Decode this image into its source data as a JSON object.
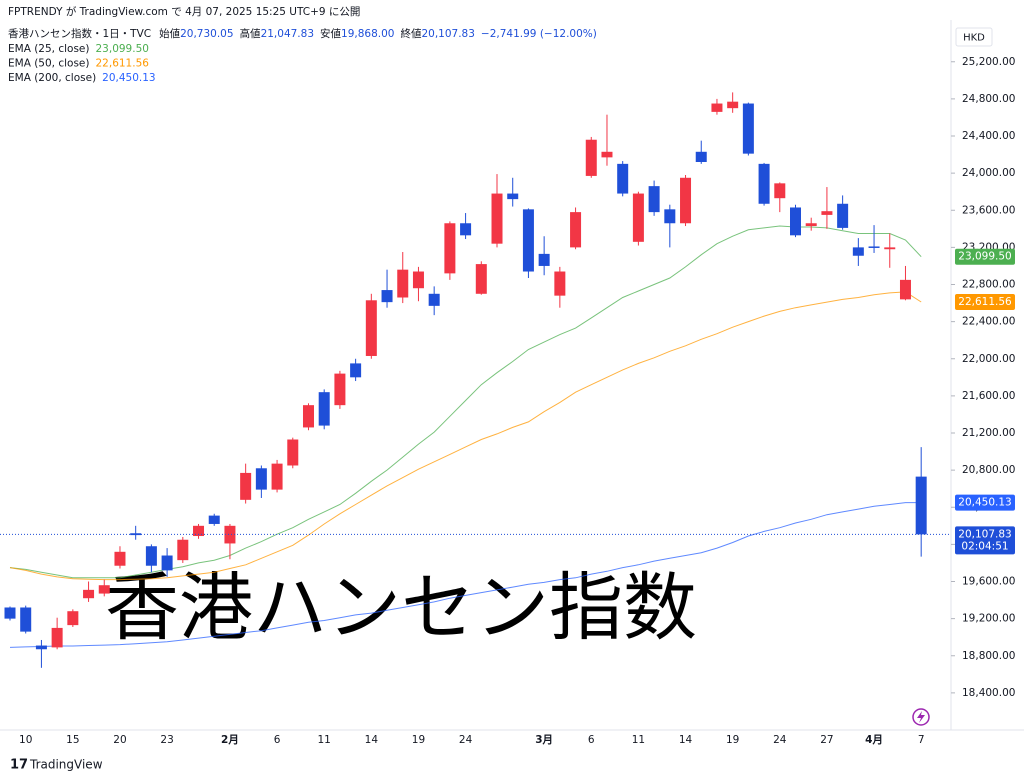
{
  "chart_data": {
    "type": "candlestick",
    "published": "FPTRENDY が TradingView.com で 4月 07, 2025 15:25 UTC+9 に公開",
    "symbol": "香港ハンセン指数・1日・TVC",
    "ohlc_text": [
      [
        "始値",
        "20,730.05"
      ],
      [
        "高値",
        "21,047.83"
      ],
      [
        "安値",
        "19,868.00"
      ],
      [
        "終値",
        "20,107.83"
      ]
    ],
    "change_text": "−2,741.99 (−12.00%)",
    "currency": "HKD",
    "overlay_title": "香港ハンセン指数",
    "brand": "TradingView",
    "up_color": "#f23645",
    "down_color": "#1f4fd8",
    "categories": [
      null,
      "10",
      null,
      null,
      "15",
      null,
      null,
      "20",
      null,
      null,
      "23",
      null,
      null,
      null,
      "2月",
      null,
      null,
      "6",
      null,
      null,
      "11",
      null,
      null,
      "14",
      null,
      null,
      "19",
      null,
      null,
      "24",
      null,
      null,
      null,
      null,
      "3月",
      null,
      null,
      "6",
      null,
      null,
      "11",
      null,
      null,
      "14",
      null,
      null,
      "19",
      null,
      null,
      "24",
      null,
      null,
      "27",
      null,
      null,
      "4月",
      null,
      null,
      "7"
    ],
    "ohlc": [
      [
        19320,
        19330,
        19180,
        19200
      ],
      [
        19320,
        19340,
        19040,
        19060
      ],
      [
        18910,
        18970,
        18670,
        18870
      ],
      [
        18890,
        19210,
        18870,
        19100
      ],
      [
        19130,
        19300,
        19110,
        19280
      ],
      [
        19420,
        19600,
        19380,
        19510
      ],
      [
        19470,
        19620,
        19440,
        19560
      ],
      [
        19770,
        19980,
        19740,
        19920
      ],
      [
        20120,
        20200,
        20050,
        20100
      ],
      [
        19980,
        20000,
        19700,
        19770
      ],
      [
        19880,
        19960,
        19650,
        19720
      ],
      [
        19830,
        20080,
        19800,
        20050
      ],
      [
        20090,
        20220,
        20060,
        20200
      ],
      [
        20310,
        20330,
        20200,
        20220
      ],
      [
        20010,
        20220,
        19840,
        20200
      ],
      [
        20480,
        20870,
        20440,
        20770
      ],
      [
        20820,
        20850,
        20500,
        20590
      ],
      [
        20590,
        20910,
        20560,
        20870
      ],
      [
        20850,
        21150,
        20820,
        21130
      ],
      [
        21260,
        21520,
        21230,
        21500
      ],
      [
        21640,
        21670,
        21240,
        21280
      ],
      [
        21500,
        21870,
        21460,
        21840
      ],
      [
        21950,
        22000,
        21760,
        21800
      ],
      [
        22030,
        22700,
        22000,
        22630
      ],
      [
        22740,
        22960,
        22550,
        22610
      ],
      [
        22660,
        23150,
        22600,
        22960
      ],
      [
        22760,
        22990,
        22620,
        22940
      ],
      [
        22700,
        22780,
        22470,
        22570
      ],
      [
        22920,
        23480,
        22850,
        23460
      ],
      [
        23460,
        23570,
        23290,
        23330
      ],
      [
        22700,
        23050,
        22690,
        23020
      ],
      [
        23240,
        23990,
        23200,
        23780
      ],
      [
        23780,
        23950,
        23640,
        23720
      ],
      [
        23610,
        23620,
        22870,
        22940
      ],
      [
        23130,
        23320,
        22900,
        23000
      ],
      [
        22680,
        22990,
        22550,
        22940
      ],
      [
        23200,
        23630,
        23180,
        23580
      ],
      [
        23970,
        24390,
        23950,
        24360
      ],
      [
        24170,
        24630,
        24080,
        24230
      ],
      [
        24100,
        24130,
        23750,
        23780
      ],
      [
        23260,
        23800,
        23220,
        23780
      ],
      [
        23860,
        23920,
        23540,
        23580
      ],
      [
        23610,
        23660,
        23200,
        23460
      ],
      [
        23460,
        23980,
        23430,
        23950
      ],
      [
        24230,
        24350,
        24100,
        24120
      ],
      [
        24660,
        24800,
        24630,
        24750
      ],
      [
        24700,
        24870,
        24650,
        24770
      ],
      [
        24750,
        24760,
        24190,
        24210
      ],
      [
        24100,
        24110,
        23650,
        23670
      ],
      [
        23730,
        23900,
        23580,
        23890
      ],
      [
        23630,
        23660,
        23310,
        23330
      ],
      [
        23430,
        23520,
        23380,
        23460
      ],
      [
        23550,
        23850,
        23400,
        23590
      ],
      [
        23670,
        23760,
        23390,
        23410
      ],
      [
        23200,
        23300,
        23000,
        23110
      ],
      [
        23210,
        23440,
        23140,
        23200
      ],
      [
        23180,
        23350,
        22980,
        23200
      ],
      [
        22640,
        23000,
        22630,
        22850
      ],
      [
        20730.05,
        21047.83,
        19868.0,
        20107.83
      ]
    ],
    "last_price_label": {
      "value": 20107.83,
      "label": "20,107.83"
    },
    "countdown": "02:04:51",
    "series": [
      {
        "name": "EMA (25, close)",
        "color": "#4caf50",
        "price_label": {
          "value": 23099.5,
          "label": "23,099.50"
        },
        "values": [
          19750,
          19730,
          19700,
          19670,
          19640,
          19640,
          19640,
          19640,
          19670,
          19700,
          19730,
          19760,
          19800,
          19830,
          19880,
          19960,
          20030,
          20110,
          20180,
          20270,
          20350,
          20430,
          20550,
          20680,
          20800,
          20940,
          21080,
          21210,
          21380,
          21550,
          21720,
          21850,
          21970,
          22100,
          22180,
          22260,
          22330,
          22440,
          22550,
          22660,
          22730,
          22800,
          22870,
          22990,
          23120,
          23240,
          23320,
          23390,
          23410,
          23430,
          23420,
          23420,
          23410,
          23380,
          23350,
          23350,
          23350,
          23280,
          23099.5
        ]
      },
      {
        "name": "EMA (50, close)",
        "color": "#ff9800",
        "price_label": {
          "value": 22611.56,
          "label": "22,611.56"
        },
        "values": [
          19750,
          19720,
          19680,
          19650,
          19630,
          19625,
          19620,
          19620,
          19625,
          19630,
          19640,
          19660,
          19680,
          19700,
          19740,
          19780,
          19850,
          19920,
          19990,
          20100,
          20220,
          20330,
          20430,
          20530,
          20630,
          20720,
          20810,
          20890,
          20970,
          21050,
          21130,
          21190,
          21260,
          21320,
          21430,
          21530,
          21640,
          21720,
          21800,
          21880,
          21950,
          22010,
          22080,
          22140,
          22210,
          22270,
          22340,
          22400,
          22460,
          22510,
          22550,
          22580,
          22610,
          22640,
          22660,
          22690,
          22710,
          22720,
          22611.56
        ]
      },
      {
        "name": "EMA (200, close)",
        "color": "#2962ff",
        "price_label": {
          "value": 20450.13,
          "label": "20,450.13"
        },
        "values": [
          18890,
          18895,
          18900,
          18905,
          18905,
          18910,
          18915,
          18920,
          18930,
          18940,
          18950,
          18970,
          18990,
          19010,
          19030,
          19050,
          19070,
          19100,
          19130,
          19160,
          19180,
          19210,
          19240,
          19260,
          19290,
          19320,
          19350,
          19380,
          19420,
          19450,
          19480,
          19510,
          19540,
          19570,
          19590,
          19620,
          19640,
          19680,
          19710,
          19750,
          19780,
          19820,
          19850,
          19880,
          19910,
          19960,
          20020,
          20090,
          20140,
          20180,
          20230,
          20270,
          20320,
          20350,
          20380,
          20410,
          20430,
          20450,
          20450.13
        ]
      }
    ],
    "ylim": [
      18000,
      25650
    ],
    "yticks": [
      {
        "value": 18400,
        "label": "18,400.00"
      },
      {
        "value": 18800,
        "label": "18,800.00"
      },
      {
        "value": 19200,
        "label": "19,200.00"
      },
      {
        "value": 19600,
        "label": "19,600.00"
      },
      {
        "value": 20000,
        "label": "20,000.00"
      },
      {
        "value": 20400,
        "label": "20,400.00"
      },
      {
        "value": 20800,
        "label": "20,800.00"
      },
      {
        "value": 21200,
        "label": "21,200.00"
      },
      {
        "value": 21600,
        "label": "21,600.00"
      },
      {
        "value": 22000,
        "label": "22,000.00"
      },
      {
        "value": 22400,
        "label": "22,400.00"
      },
      {
        "value": 22800,
        "label": "22,800.00"
      },
      {
        "value": 23200,
        "label": "23,200.00"
      },
      {
        "value": 23600,
        "label": "23,600.00"
      },
      {
        "value": 24000,
        "label": "24,000.00"
      },
      {
        "value": 24400,
        "label": "24,400.00"
      },
      {
        "value": 24800,
        "label": "24,800.00"
      },
      {
        "value": 25200,
        "label": "25,200.00"
      }
    ],
    "grid": false
  }
}
